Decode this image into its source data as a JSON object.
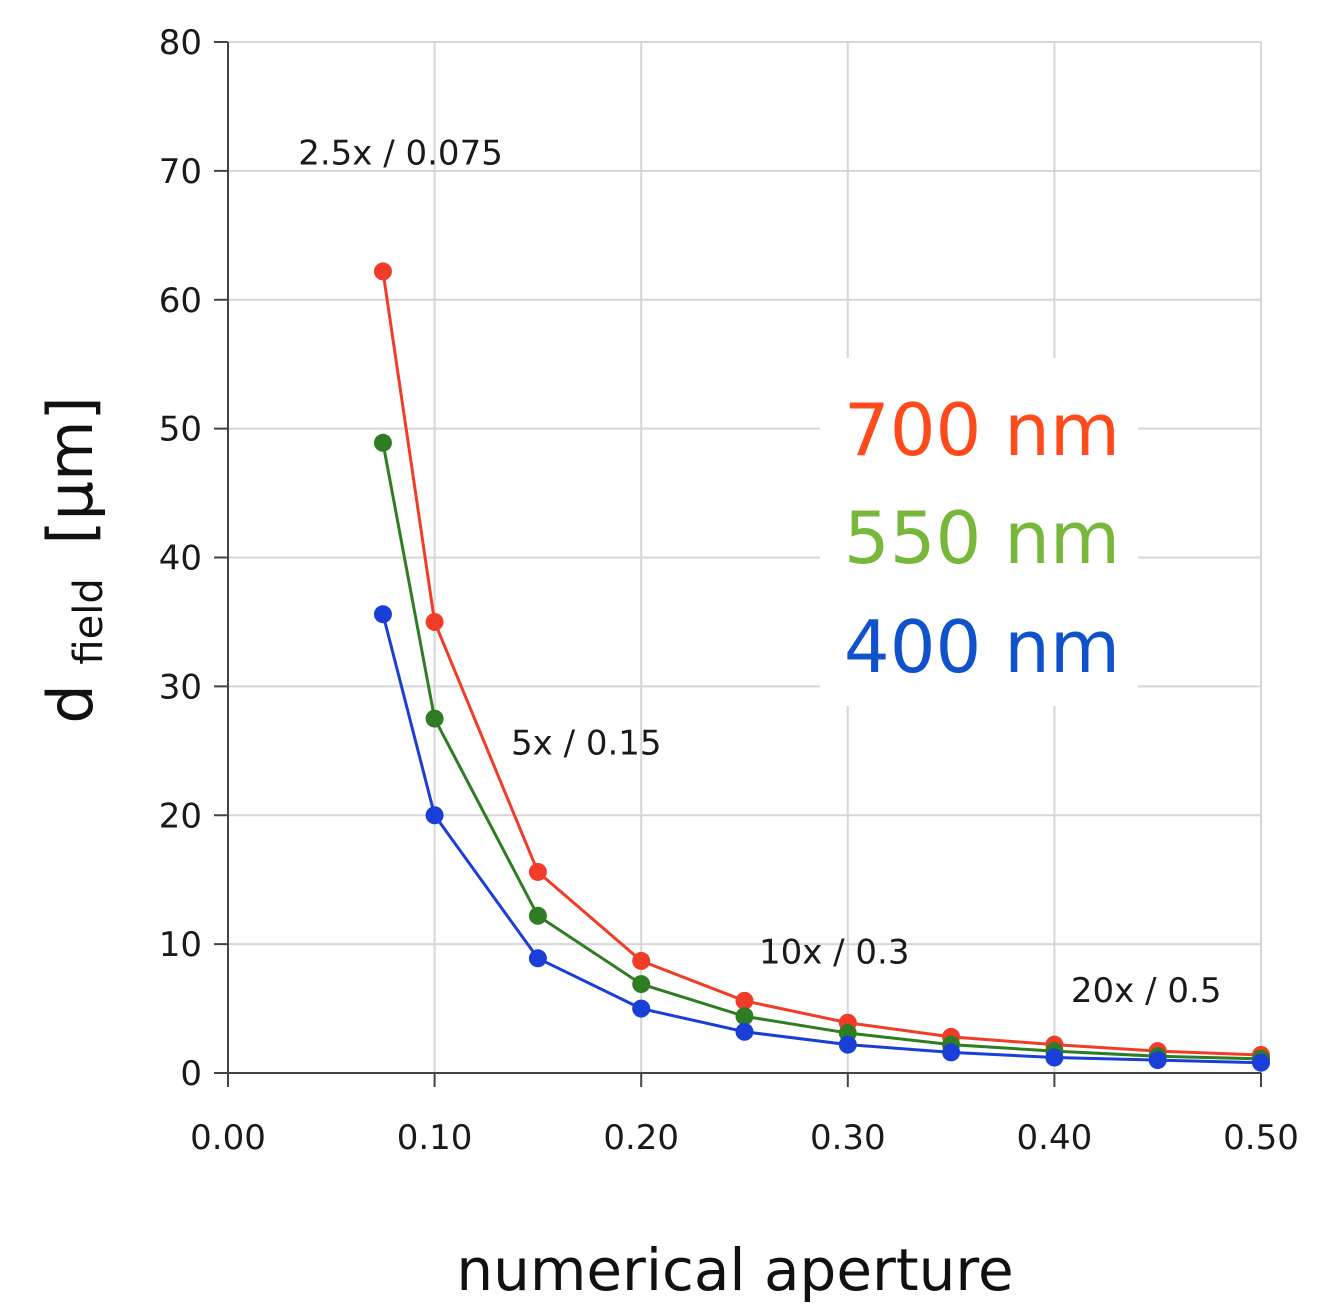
{
  "chart_data": {
    "type": "line",
    "xlabel": "numerical aperture",
    "ylabel_main": "d",
    "ylabel_sub": "field",
    "ylabel_unit": "[µm]",
    "xlim": [
      0.0,
      0.5
    ],
    "ylim": [
      0,
      80
    ],
    "x_ticks": [
      "0.00",
      "0.10",
      "0.20",
      "0.30",
      "0.40",
      "0.50"
    ],
    "y_ticks": [
      "0",
      "10",
      "20",
      "30",
      "40",
      "50",
      "60",
      "70",
      "80"
    ],
    "grid": true,
    "legend_position": "right",
    "x": [
      0.075,
      0.1,
      0.15,
      0.2,
      0.25,
      0.3,
      0.35,
      0.4,
      0.45,
      0.5
    ],
    "series": [
      {
        "name": "700 nm",
        "color": "#f03c28",
        "values": [
          62.2,
          35.0,
          15.6,
          8.7,
          5.6,
          3.9,
          2.8,
          2.2,
          1.7,
          1.4
        ]
      },
      {
        "name": "550 nm",
        "color": "#2e7d22",
        "values": [
          48.9,
          27.5,
          12.2,
          6.9,
          4.4,
          3.1,
          2.2,
          1.7,
          1.3,
          1.1
        ]
      },
      {
        "name": "400 nm",
        "color": "#1a3fd6",
        "values": [
          35.6,
          20.0,
          8.9,
          5.0,
          3.2,
          2.2,
          1.6,
          1.2,
          1.0,
          0.8
        ]
      }
    ],
    "legend_colors": [
      "#ff4a1c",
      "#77b83a",
      "#0f52cc"
    ],
    "annotations": [
      {
        "text": "2.5x / 0.075",
        "x": 0.034,
        "y": 70.5
      },
      {
        "text": "5x / 0.15",
        "x": 0.137,
        "y": 24.7
      },
      {
        "text": "10x / 0.3",
        "x": 0.257,
        "y": 8.5
      },
      {
        "text": "20x / 0.5",
        "x": 0.408,
        "y": 5.5
      }
    ]
  }
}
